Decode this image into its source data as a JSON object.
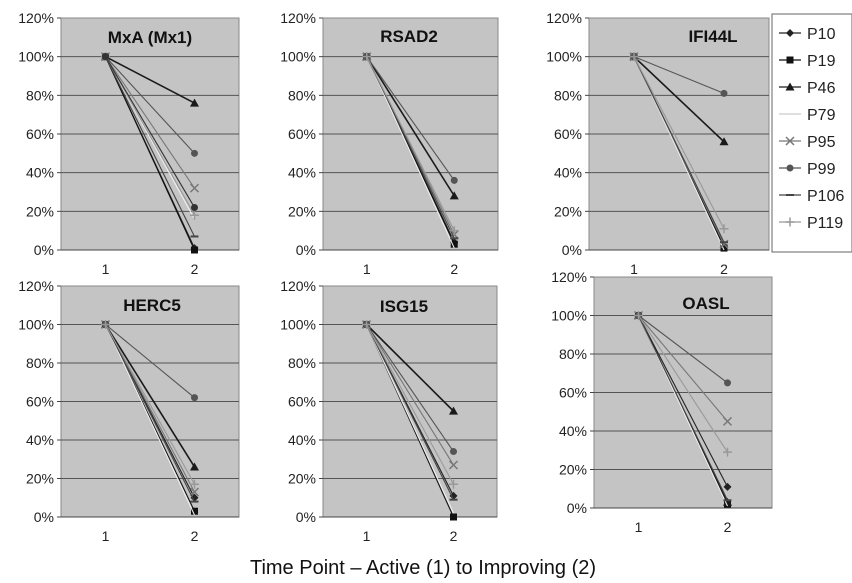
{
  "figure": {
    "xlabel": "Time Point – Active (1) to Improving (2)"
  },
  "legend": {
    "entries": [
      {
        "name": "P10",
        "marker": "diamond"
      },
      {
        "name": "P19",
        "marker": "square"
      },
      {
        "name": "P46",
        "marker": "triangle"
      },
      {
        "name": "P79",
        "marker": "none"
      },
      {
        "name": "P95",
        "marker": "x"
      },
      {
        "name": "P99",
        "marker": "circle"
      },
      {
        "name": "P106",
        "marker": "dash"
      },
      {
        "name": "P119",
        "marker": "plus"
      }
    ]
  },
  "chart_data": [
    {
      "type": "line",
      "title": "MxA (Mx1)",
      "categories": [
        "1",
        "2"
      ],
      "yticks": [
        "0%",
        "20%",
        "40%",
        "60%",
        "80%",
        "100%",
        "120%"
      ],
      "ylim": [
        0,
        120
      ],
      "grid": true,
      "plot_background": "#c4c4c4",
      "series": [
        {
          "name": "P10",
          "values": [
            100,
            1
          ]
        },
        {
          "name": "P19",
          "values": [
            100,
            0
          ]
        },
        {
          "name": "P46",
          "values": [
            100,
            76
          ]
        },
        {
          "name": "P79",
          "values": [
            100,
            16
          ]
        },
        {
          "name": "P95",
          "values": [
            100,
            32
          ]
        },
        {
          "name": "P99",
          "values": [
            100,
            50
          ]
        },
        {
          "name": "P106",
          "values": [
            100,
            7
          ]
        },
        {
          "name": "P119",
          "values": [
            100,
            18
          ]
        },
        {
          "name": "",
          "values": [
            100,
            22
          ]
        }
      ]
    },
    {
      "type": "line",
      "title": "RSAD2",
      "categories": [
        "1",
        "2"
      ],
      "yticks": [
        "0%",
        "20%",
        "40%",
        "60%",
        "80%",
        "100%",
        "120%"
      ],
      "ylim": [
        0,
        120
      ],
      "grid": true,
      "plot_background": "#c4c4c4",
      "series": [
        {
          "name": "P10",
          "values": [
            100,
            4
          ]
        },
        {
          "name": "P19",
          "values": [
            100,
            3
          ]
        },
        {
          "name": "P46",
          "values": [
            100,
            28
          ]
        },
        {
          "name": "P79",
          "values": [
            100,
            1
          ]
        },
        {
          "name": "P95",
          "values": [
            100,
            8
          ]
        },
        {
          "name": "P99",
          "values": [
            100,
            36
          ]
        },
        {
          "name": "P106",
          "values": [
            100,
            6
          ]
        },
        {
          "name": "P119",
          "values": [
            100,
            10
          ]
        }
      ]
    },
    {
      "type": "line",
      "title": "IFI44L",
      "categories": [
        "1",
        "2"
      ],
      "yticks": [
        "0%",
        "20%",
        "40%",
        "60%",
        "80%",
        "100%",
        "120%"
      ],
      "ylim": [
        0,
        120
      ],
      "grid": true,
      "plot_background": "#c4c4c4",
      "series": [
        {
          "name": "P10",
          "values": [
            100,
            2
          ]
        },
        {
          "name": "P19",
          "values": [
            100,
            1
          ]
        },
        {
          "name": "P46",
          "values": [
            100,
            56
          ]
        },
        {
          "name": "P79",
          "values": [
            100,
            0
          ]
        },
        {
          "name": "P95",
          "values": [
            100,
            3
          ]
        },
        {
          "name": "P99",
          "values": [
            100,
            81
          ]
        },
        {
          "name": "P106",
          "values": [
            100,
            4
          ]
        },
        {
          "name": "P119",
          "values": [
            100,
            11
          ]
        }
      ]
    },
    {
      "type": "line",
      "title": "HERC5",
      "categories": [
        "1",
        "2"
      ],
      "yticks": [
        "0%",
        "20%",
        "40%",
        "60%",
        "80%",
        "100%",
        "120%"
      ],
      "ylim": [
        0,
        120
      ],
      "grid": true,
      "plot_background": "#c4c4c4",
      "series": [
        {
          "name": "P10",
          "values": [
            100,
            10
          ]
        },
        {
          "name": "P19",
          "values": [
            100,
            3
          ]
        },
        {
          "name": "P46",
          "values": [
            100,
            26
          ]
        },
        {
          "name": "P79",
          "values": [
            100,
            1
          ]
        },
        {
          "name": "P95",
          "values": [
            100,
            13
          ]
        },
        {
          "name": "P99",
          "values": [
            100,
            62
          ]
        },
        {
          "name": "P106",
          "values": [
            100,
            8
          ]
        },
        {
          "name": "P119",
          "values": [
            100,
            17
          ]
        }
      ]
    },
    {
      "type": "line",
      "title": "ISG15",
      "categories": [
        "1",
        "2"
      ],
      "yticks": [
        "0%",
        "20%",
        "40%",
        "60%",
        "80%",
        "100%",
        "120%"
      ],
      "ylim": [
        0,
        120
      ],
      "grid": true,
      "plot_background": "#c4c4c4",
      "series": [
        {
          "name": "P10",
          "values": [
            100,
            11
          ]
        },
        {
          "name": "P19",
          "values": [
            100,
            0
          ]
        },
        {
          "name": "P46",
          "values": [
            100,
            55
          ]
        },
        {
          "name": "P79",
          "values": [
            100,
            2
          ]
        },
        {
          "name": "P95",
          "values": [
            100,
            27
          ]
        },
        {
          "name": "P99",
          "values": [
            100,
            34
          ]
        },
        {
          "name": "P106",
          "values": [
            100,
            9
          ]
        },
        {
          "name": "P119",
          "values": [
            100,
            17
          ]
        }
      ]
    },
    {
      "type": "line",
      "title": "OASL",
      "categories": [
        "1",
        "2"
      ],
      "yticks": [
        "0%",
        "20%",
        "40%",
        "60%",
        "80%",
        "100%",
        "120%"
      ],
      "ylim": [
        0,
        120
      ],
      "grid": true,
      "plot_background": "#c4c4c4",
      "series": [
        {
          "name": "P10",
          "values": [
            100,
            11
          ]
        },
        {
          "name": "P19",
          "values": [
            100,
            2
          ]
        },
        {
          "name": "P46",
          "values": [
            100,
            3
          ]
        },
        {
          "name": "P79",
          "values": [
            100,
            1
          ]
        },
        {
          "name": "P95",
          "values": [
            100,
            45
          ]
        },
        {
          "name": "P99",
          "values": [
            100,
            65
          ]
        },
        {
          "name": "P106",
          "values": [
            100,
            4
          ]
        },
        {
          "name": "P119",
          "values": [
            100,
            29
          ]
        }
      ]
    }
  ]
}
